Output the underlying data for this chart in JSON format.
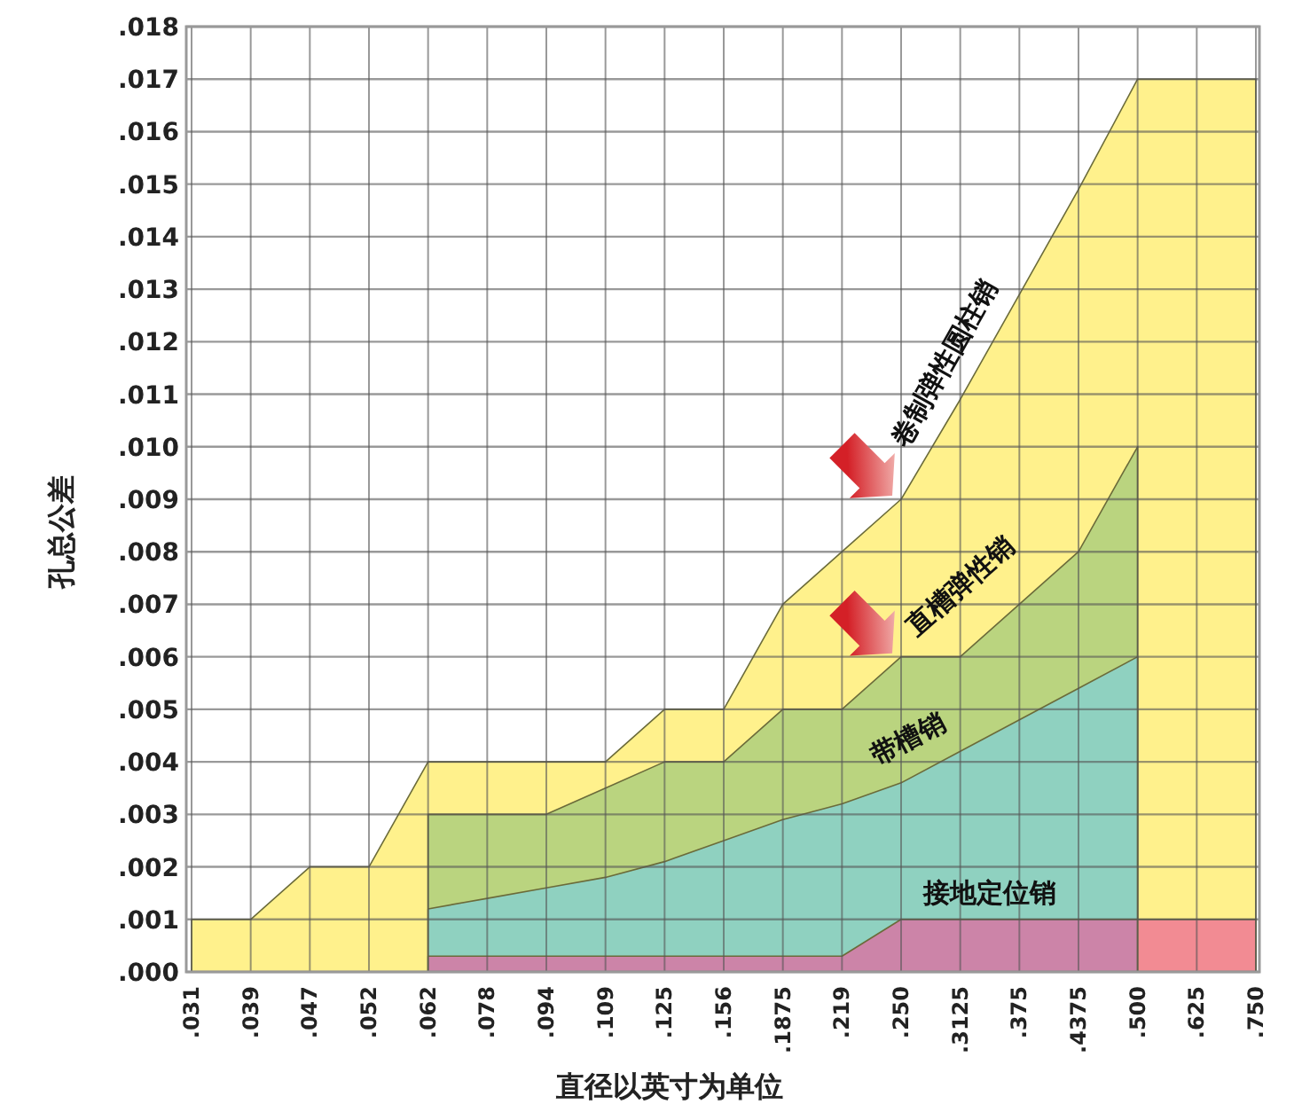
{
  "chart_data": {
    "type": "area",
    "xlabel": "直径以英寸为单位",
    "ylabel": "孔总公差",
    "categories": [
      ".031",
      ".039",
      ".047",
      ".052",
      ".062",
      ".078",
      ".094",
      ".109",
      ".125",
      ".156",
      ".1875",
      ".219",
      ".250",
      ".3125",
      ".375",
      ".4375",
      ".500",
      ".625",
      ".750"
    ],
    "series": [
      {
        "name": "卷制弹性圆柱销",
        "color": "#fff18c",
        "values": [
          0.001,
          0.001,
          0.002,
          0.002,
          0.004,
          0.004,
          0.004,
          0.004,
          0.005,
          0.005,
          0.007,
          0.008,
          0.009,
          0.0109,
          0.0129,
          0.0149,
          0.017,
          0.017,
          0.017
        ]
      },
      {
        "name": "直槽弹性销",
        "color": "#bad47f",
        "values": [
          null,
          null,
          null,
          null,
          0.003,
          0.003,
          0.003,
          0.0035,
          0.004,
          0.004,
          0.005,
          0.005,
          0.006,
          0.006,
          0.007,
          0.008,
          0.01,
          null,
          null
        ]
      },
      {
        "name": "带槽销",
        "color": "#8fd1c0",
        "values": [
          null,
          null,
          null,
          null,
          0.0012,
          0.0014,
          0.0016,
          0.0018,
          0.0021,
          0.0025,
          0.0029,
          0.0032,
          0.0036,
          0.0042,
          0.0048,
          0.0054,
          0.006,
          null,
          null
        ]
      },
      {
        "name": "接地定位销",
        "color": "#cc84a8",
        "values": [
          null,
          null,
          null,
          null,
          0.0003,
          0.0003,
          0.0003,
          0.0003,
          0.0003,
          0.0003,
          0.0003,
          0.0003,
          0.001,
          0.001,
          0.001,
          0.001,
          0.001,
          null,
          null
        ]
      },
      {
        "color": "#f28b93",
        "values": [
          null,
          null,
          null,
          null,
          null,
          null,
          null,
          null,
          null,
          null,
          null,
          null,
          null,
          null,
          null,
          null,
          0.001,
          0.001,
          0.001
        ]
      }
    ],
    "ylim": [
      0,
      0.018
    ],
    "yticks": [
      {
        "value": 0,
        "label": ".000"
      },
      {
        "value": 0.001,
        "label": ".001"
      },
      {
        "value": 0.002,
        "label": ".002"
      },
      {
        "value": 0.003,
        "label": ".003"
      },
      {
        "value": 0.004,
        "label": ".004"
      },
      {
        "value": 0.005,
        "label": ".005"
      },
      {
        "value": 0.006,
        "label": ".006"
      },
      {
        "value": 0.007,
        "label": ".007"
      },
      {
        "value": 0.008,
        "label": ".008"
      },
      {
        "value": 0.009,
        "label": ".009"
      },
      {
        "value": 0.01,
        "label": ".010"
      },
      {
        "value": 0.011,
        "label": ".011"
      },
      {
        "value": 0.012,
        "label": ".012"
      },
      {
        "value": 0.013,
        "label": ".013"
      },
      {
        "value": 0.014,
        "label": ".014"
      },
      {
        "value": 0.015,
        "label": ".015"
      },
      {
        "value": 0.016,
        "label": ".016"
      },
      {
        "value": 0.017,
        "label": ".017"
      },
      {
        "value": 0.018,
        "label": ".018"
      }
    ],
    "grid": true
  }
}
